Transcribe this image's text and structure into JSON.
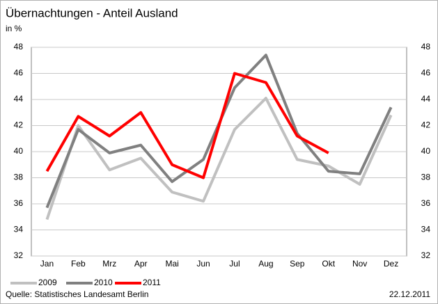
{
  "chart_data": {
    "type": "line",
    "title": "Übernachtungen - Anteil Ausland",
    "y_label": "in %",
    "categories": [
      "Jan",
      "Feb",
      "Mrz",
      "Apr",
      "Mai",
      "Jun",
      "Jul",
      "Aug",
      "Sep",
      "Okt",
      "Nov",
      "Dez"
    ],
    "series": [
      {
        "name": "2009",
        "color": "#c0c0c0",
        "values": [
          34.8,
          42.0,
          38.6,
          39.5,
          36.9,
          36.2,
          41.7,
          44.1,
          39.4,
          38.9,
          37.5,
          42.8
        ]
      },
      {
        "name": "2010",
        "color": "#808080",
        "values": [
          35.7,
          41.7,
          39.9,
          40.5,
          37.7,
          39.4,
          44.9,
          47.4,
          41.4,
          38.5,
          38.3,
          43.4
        ]
      },
      {
        "name": "2011",
        "color": "#ff0000",
        "values": [
          38.5,
          42.7,
          41.2,
          43.0,
          39.0,
          38.0,
          46.0,
          45.3,
          41.2,
          39.9,
          null,
          null
        ]
      }
    ],
    "ylim": [
      32,
      48
    ],
    "yticks": [
      32,
      34,
      36,
      38,
      40,
      42,
      44,
      46,
      48
    ],
    "y2lim": [
      32,
      48
    ],
    "y2ticks": [
      32,
      34,
      36,
      38,
      40,
      42,
      44,
      46,
      48
    ],
    "grid": true,
    "legend": "bottom",
    "source": "Quelle: Statistisches Landesamt Berlin",
    "date": "22.12.2011"
  }
}
